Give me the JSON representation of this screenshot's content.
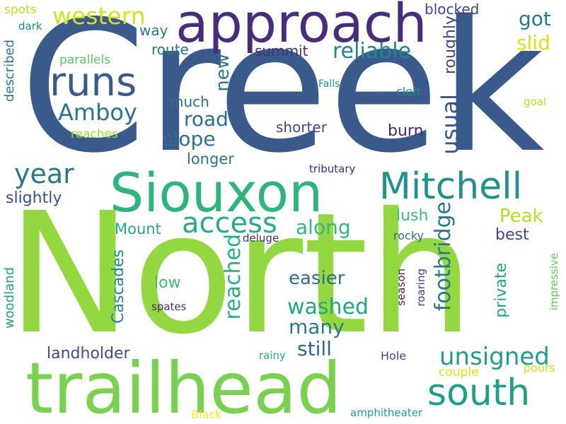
{
  "title": "",
  "words": [
    {
      "text": "Creek",
      "color": "#3b5a8c",
      "vertical": false
    },
    {
      "text": "North",
      "color": "#93d741",
      "vertical": false
    },
    {
      "text": "trailhead",
      "color": "#7ad151",
      "vertical": false
    },
    {
      "text": "approach",
      "color": "#472d7b",
      "vertical": false
    },
    {
      "text": "Siouxon",
      "color": "#2fb47c",
      "vertical": false
    },
    {
      "text": "Mitchell",
      "color": "#21918c",
      "vertical": false
    },
    {
      "text": "runs",
      "color": "#3b5a8c",
      "vertical": false
    },
    {
      "text": "south",
      "color": "#1f9e89",
      "vertical": false
    },
    {
      "text": "year",
      "color": "#2a788e",
      "vertical": false
    },
    {
      "text": "access",
      "color": "#27ad81",
      "vertical": false
    },
    {
      "text": "western",
      "color": "#d2e21b",
      "vertical": false
    },
    {
      "text": "reliable",
      "color": "#25848e",
      "vertical": false
    },
    {
      "text": "footbridge",
      "color": "#2a788e",
      "vertical": true
    },
    {
      "text": "unsigned",
      "color": "#1f9e89",
      "vertical": false
    },
    {
      "text": "usual",
      "color": "#39568c",
      "vertical": true
    },
    {
      "text": "Amboy",
      "color": "#2c728e",
      "vertical": false
    },
    {
      "text": "reached",
      "color": "#29af7f",
      "vertical": true
    },
    {
      "text": "washed",
      "color": "#21a685",
      "vertical": false
    },
    {
      "text": "got",
      "color": "#2a788e",
      "vertical": false
    },
    {
      "text": "slid",
      "color": "#d8e219",
      "vertical": false
    },
    {
      "text": "new",
      "color": "#2a788e",
      "vertical": true
    },
    {
      "text": "road",
      "color": "#2e6e8e",
      "vertical": false
    },
    {
      "text": "slope",
      "color": "#2e6e8e",
      "vertical": false
    },
    {
      "text": "along",
      "color": "#35b779",
      "vertical": false
    },
    {
      "text": "many",
      "color": "#2a788e",
      "vertical": false
    },
    {
      "text": "still",
      "color": "#32658e",
      "vertical": false
    },
    {
      "text": "Peak",
      "color": "#b5de2b",
      "vertical": false
    },
    {
      "text": "easier",
      "color": "#2e6e8e",
      "vertical": false
    },
    {
      "text": "roughly",
      "color": "#3f4889",
      "vertical": true
    },
    {
      "text": "Cascades",
      "color": "#25858e",
      "vertical": true
    },
    {
      "text": "private",
      "color": "#21a685",
      "vertical": true
    },
    {
      "text": "landholder",
      "color": "#3e4c8a",
      "vertical": false
    },
    {
      "text": "summit",
      "color": "#472f7d",
      "vertical": false
    },
    {
      "text": "route",
      "color": "#2e6e8e",
      "vertical": false
    },
    {
      "text": "way",
      "color": "#2c738e",
      "vertical": false
    },
    {
      "text": "much",
      "color": "#2e6e8e",
      "vertical": false
    },
    {
      "text": "shorter",
      "color": "#414487",
      "vertical": false
    },
    {
      "text": "burn",
      "color": "#482677",
      "vertical": false
    },
    {
      "text": "lush",
      "color": "#3dbc74",
      "vertical": false
    },
    {
      "text": "best",
      "color": "#3e4989",
      "vertical": false
    },
    {
      "text": "Mount",
      "color": "#22a884",
      "vertical": false
    },
    {
      "text": "longer",
      "color": "#2e6e8e",
      "vertical": false
    },
    {
      "text": "slightly",
      "color": "#3b518b",
      "vertical": false
    },
    {
      "text": "low",
      "color": "#3dbc74",
      "vertical": false
    },
    {
      "text": "woodland",
      "color": "#1f9e89",
      "vertical": true
    },
    {
      "text": "described",
      "color": "#2b748e",
      "vertical": true
    },
    {
      "text": "blocked",
      "color": "#414487",
      "vertical": false
    },
    {
      "text": "spots",
      "color": "#c0df25",
      "vertical": false
    },
    {
      "text": "dark",
      "color": "#23898e",
      "vertical": false
    },
    {
      "text": "parallels",
      "color": "#56c667",
      "vertical": false
    },
    {
      "text": "Falls",
      "color": "#1f9a8a",
      "vertical": false
    },
    {
      "text": "cleft",
      "color": "#24868e",
      "vertical": false
    },
    {
      "text": "goal",
      "color": "#b5de2b",
      "vertical": false
    },
    {
      "text": "reaches",
      "color": "#a0da39",
      "vertical": false
    },
    {
      "text": "tributary",
      "color": "#482878",
      "vertical": false
    },
    {
      "text": "deluge",
      "color": "#46307e",
      "vertical": false
    },
    {
      "text": "rocky",
      "color": "#2e6e8e",
      "vertical": false
    },
    {
      "text": "season",
      "color": "#482173",
      "vertical": true
    },
    {
      "text": "roaring",
      "color": "#443a83",
      "vertical": true
    },
    {
      "text": "impressive",
      "color": "#5ec962",
      "vertical": true
    },
    {
      "text": "spates",
      "color": "#472d7b",
      "vertical": false
    },
    {
      "text": "rainy",
      "color": "#29af7f",
      "vertical": false
    },
    {
      "text": "Hole",
      "color": "#3e4c8a",
      "vertical": false
    },
    {
      "text": "couple",
      "color": "#dde318",
      "vertical": false
    },
    {
      "text": "pours",
      "color": "#d0e11c",
      "vertical": false
    },
    {
      "text": "Black",
      "color": "#fde725",
      "vertical": false
    },
    {
      "text": "amphitheater",
      "color": "#1f9e89",
      "vertical": false
    }
  ]
}
